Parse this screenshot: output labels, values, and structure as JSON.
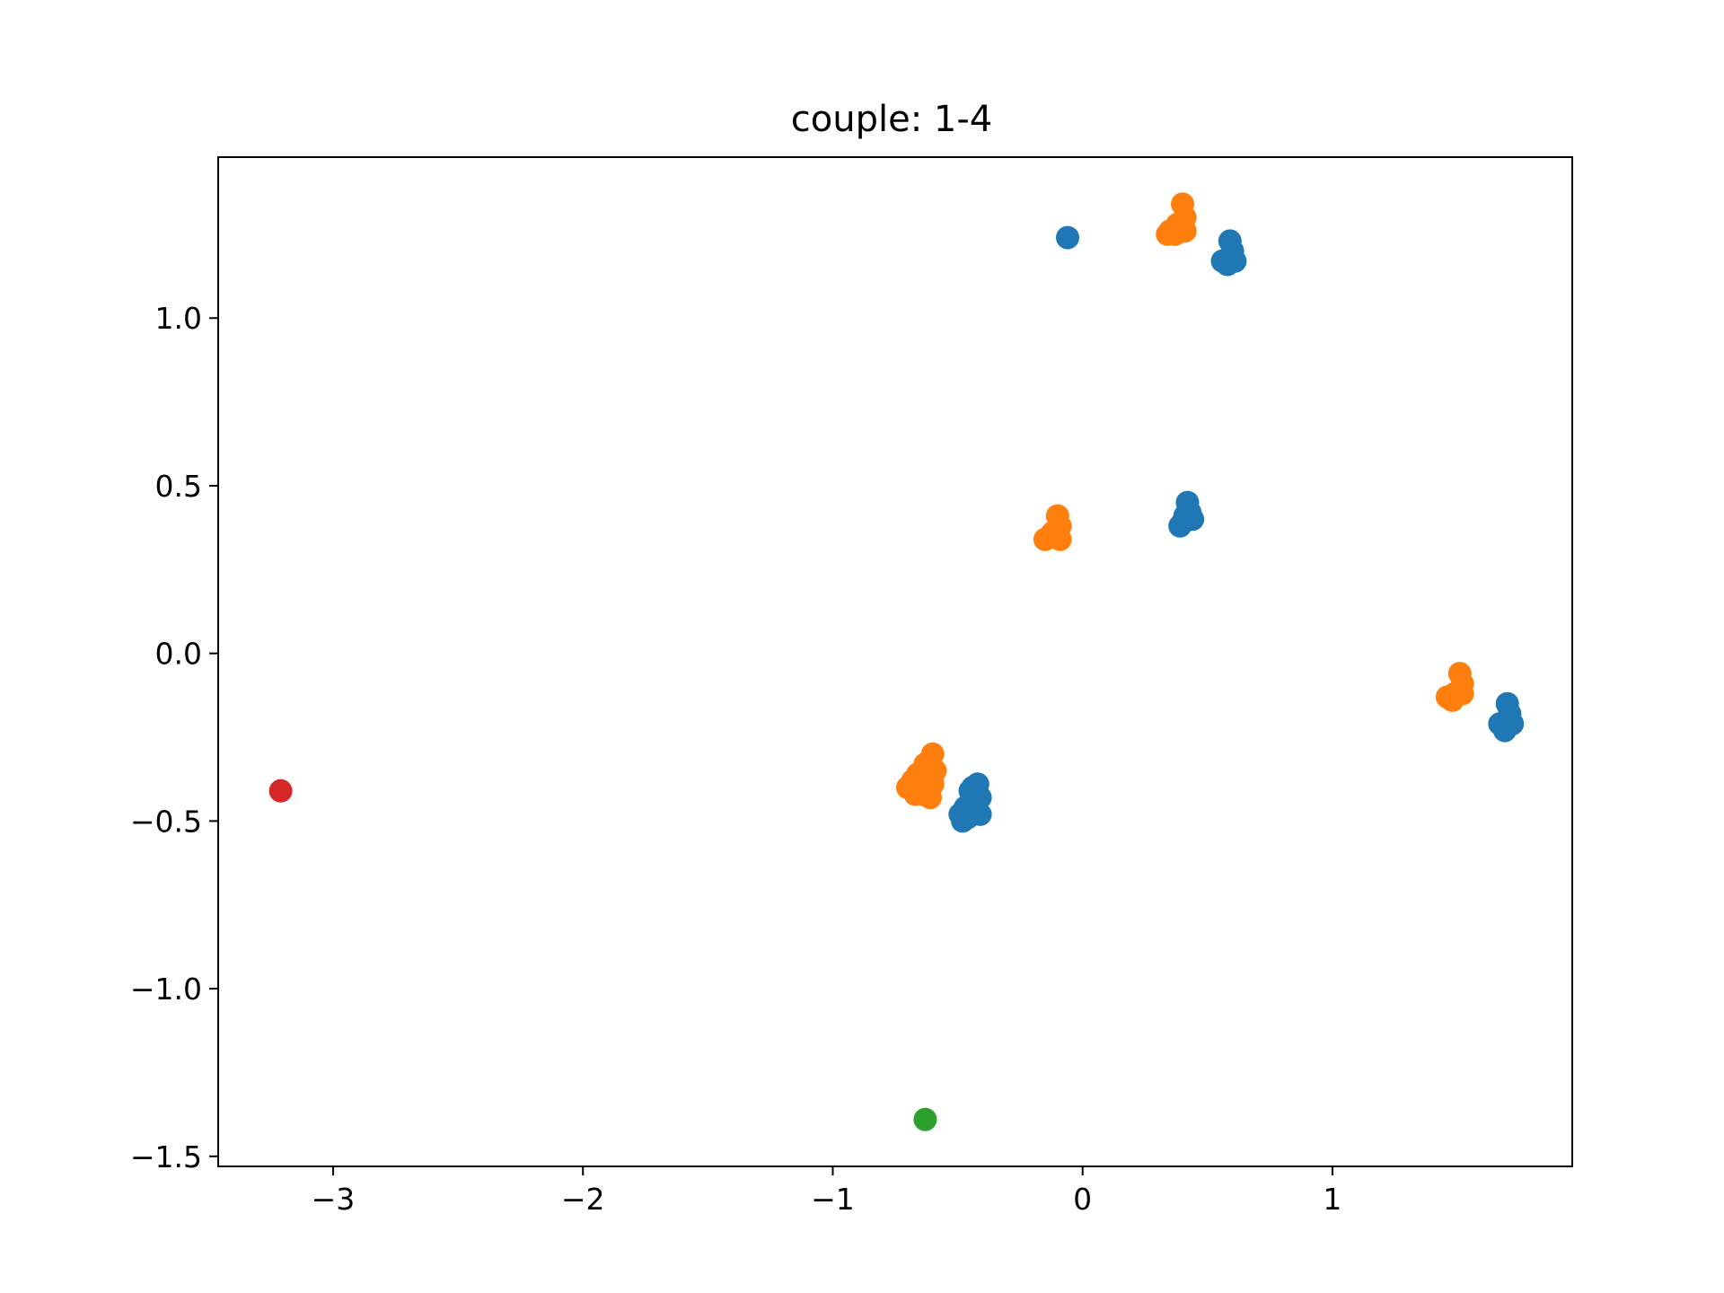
{
  "chart_data": {
    "type": "scatter",
    "title": "couple: 1-4",
    "xlabel": "",
    "ylabel": "",
    "xlim": [
      -3.46,
      1.96
    ],
    "ylim": [
      -1.53,
      1.48
    ],
    "xticks": [
      -3,
      -2,
      -1,
      0,
      1
    ],
    "xtick_labels": [
      "−3",
      "−2",
      "−1",
      "0",
      "1"
    ],
    "yticks": [
      -1.5,
      -1.0,
      -0.5,
      0.0,
      0.5,
      1.0
    ],
    "ytick_labels": [
      "−1.5",
      "−1.0",
      "−0.5",
      "0.0",
      "0.5",
      "1.0"
    ],
    "grid": false,
    "series": [
      {
        "color": "#1f77b4",
        "points": [
          [
            -0.06,
            1.24
          ],
          [
            0.59,
            1.23
          ],
          [
            0.6,
            1.2
          ],
          [
            0.56,
            1.17
          ],
          [
            0.58,
            1.16
          ],
          [
            0.61,
            1.17
          ],
          [
            0.42,
            0.45
          ],
          [
            0.4,
            0.39
          ],
          [
            0.44,
            0.4
          ],
          [
            0.39,
            0.38
          ],
          [
            0.43,
            0.42
          ],
          [
            0.41,
            0.41
          ],
          [
            -0.42,
            -0.39
          ],
          [
            -0.45,
            -0.41
          ],
          [
            -0.41,
            -0.43
          ],
          [
            -0.44,
            -0.44
          ],
          [
            -0.47,
            -0.46
          ],
          [
            -0.49,
            -0.48
          ],
          [
            -0.46,
            -0.49
          ],
          [
            -0.43,
            -0.47
          ],
          [
            -0.41,
            -0.48
          ],
          [
            -0.48,
            -0.5
          ],
          [
            -0.45,
            -0.45
          ],
          [
            -0.44,
            -0.4
          ],
          [
            1.7,
            -0.15
          ],
          [
            1.71,
            -0.18
          ],
          [
            1.69,
            -0.21
          ],
          [
            1.67,
            -0.21
          ],
          [
            1.72,
            -0.21
          ],
          [
            1.69,
            -0.23
          ]
        ]
      },
      {
        "color": "#ff7f0e",
        "points": [
          [
            0.4,
            1.34
          ],
          [
            0.41,
            1.3
          ],
          [
            0.38,
            1.28
          ],
          [
            0.35,
            1.26
          ],
          [
            0.34,
            1.25
          ],
          [
            0.37,
            1.25
          ],
          [
            0.41,
            1.26
          ],
          [
            -0.1,
            0.41
          ],
          [
            -0.09,
            0.38
          ],
          [
            -0.13,
            0.35
          ],
          [
            -0.15,
            0.34
          ],
          [
            -0.09,
            0.34
          ],
          [
            -0.12,
            0.36
          ],
          [
            -0.6,
            -0.3
          ],
          [
            -0.63,
            -0.33
          ],
          [
            -0.59,
            -0.35
          ],
          [
            -0.66,
            -0.36
          ],
          [
            -0.62,
            -0.37
          ],
          [
            -0.7,
            -0.4
          ],
          [
            -0.67,
            -0.42
          ],
          [
            -0.64,
            -0.42
          ],
          [
            -0.61,
            -0.43
          ],
          [
            -0.6,
            -0.39
          ],
          [
            -0.68,
            -0.38
          ],
          [
            -0.65,
            -0.4
          ],
          [
            1.51,
            -0.06
          ],
          [
            1.52,
            -0.09
          ],
          [
            1.49,
            -0.12
          ],
          [
            1.46,
            -0.13
          ],
          [
            1.48,
            -0.14
          ],
          [
            1.52,
            -0.12
          ]
        ]
      },
      {
        "color": "#2ca02c",
        "points": [
          [
            -0.63,
            -1.39
          ]
        ]
      },
      {
        "color": "#d62728",
        "points": [
          [
            -3.21,
            -0.41
          ]
        ]
      }
    ]
  }
}
